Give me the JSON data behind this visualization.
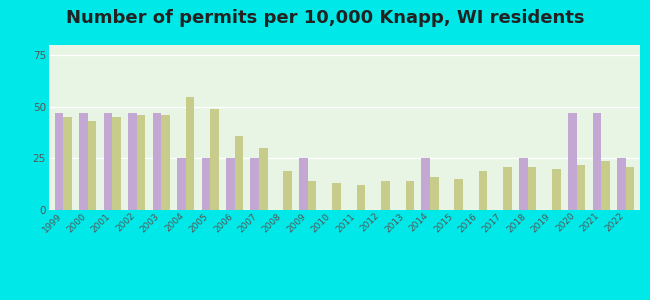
{
  "title": "Number of permits per 10,000 Knapp, WI residents",
  "years": [
    1999,
    2000,
    2001,
    2002,
    2003,
    2004,
    2005,
    2006,
    2007,
    2008,
    2009,
    2010,
    2011,
    2012,
    2013,
    2014,
    2015,
    2016,
    2017,
    2018,
    2019,
    2020,
    2021,
    2022
  ],
  "knapp": [
    47,
    47,
    47,
    47,
    47,
    25,
    25,
    25,
    25,
    0,
    25,
    0,
    0,
    0,
    0,
    25,
    0,
    0,
    0,
    25,
    0,
    47,
    47,
    25
  ],
  "wisconsin": [
    45,
    43,
    45,
    46,
    46,
    55,
    49,
    36,
    30,
    19,
    14,
    13,
    12,
    14,
    14,
    16,
    15,
    19,
    21,
    21,
    20,
    22,
    24,
    21
  ],
  "knapp_color": "#c4a8d4",
  "wisconsin_color": "#c8cc8a",
  "background_color": "#00e8e8",
  "plot_facecolor": "#e8f5e4",
  "ylim": [
    0,
    80
  ],
  "yticks": [
    0,
    25,
    50,
    75
  ],
  "title_fontsize": 13,
  "bar_width": 0.35
}
